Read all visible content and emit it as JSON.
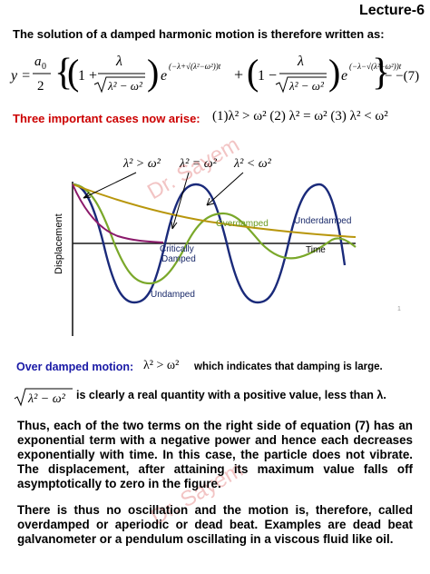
{
  "header": {
    "lecture": "Lecture-6"
  },
  "intro": "The solution of a damped harmonic motion is therefore written as:",
  "equation": {
    "lhs": "y =",
    "a0": "a",
    "a0_sub": "0",
    "two": "2",
    "one_plus": "1 +",
    "one_minus": "1 −",
    "lambda": "λ",
    "sqrt_expr": "λ² − ω²",
    "e": "e",
    "exp1": "(−λ+√(λ²−ω²))t",
    "exp2": "(−λ−√(λ²−ω²))t",
    "number": "− −(7)"
  },
  "cases": {
    "label": "Three important cases now arise:",
    "text": "(1)λ² > ω²  (2) λ² = ω²  (3) λ² < ω²"
  },
  "watermark": "Dr. Sayem",
  "figure": {
    "labels": {
      "case1": "λ² > ω²",
      "case2": "λ² = ω²",
      "case3": "λ² < ω²",
      "overdamped": "Overdamped",
      "underdamped": "Underdamped",
      "critically_line1": "Critically",
      "critically_line2": "Damped",
      "undamped": "Undamped",
      "time": "Time",
      "displacement": "Displacement",
      "slide_number": "1"
    },
    "colors": {
      "overdamped": "#b8960c",
      "critical": "#8b1a6b",
      "underdamped": "#7aa82a",
      "undamped": "#1a2a7a",
      "label_green": "#6a9a20",
      "label_navy": "#1a2a6a",
      "axis": "#1a1a1a"
    }
  },
  "overdamped": {
    "label": "Over damped motion:",
    "math": "λ² > ω²",
    "note": "which  indicates that damping is large.",
    "sqrt_expr": "λ² − ω²",
    "sqrt_note": "is clearly a real quantity with a positive value, less than λ."
  },
  "paragraphs": {
    "p1": "Thus, each of the two terms on the right side of equation (7) has an exponential term with a negative power and hence each decreases exponentially with time. In this case, the particle does not vibrate. The displacement, after attaining its maximum value falls off asymptotically to zero in the figure.",
    "p2": "There is thus no oscillation and the motion is, therefore, called overdamped or aperiodic or dead beat. Examples are dead beat galvanometer or a pendulum oscillating in a viscous fluid like oil."
  }
}
